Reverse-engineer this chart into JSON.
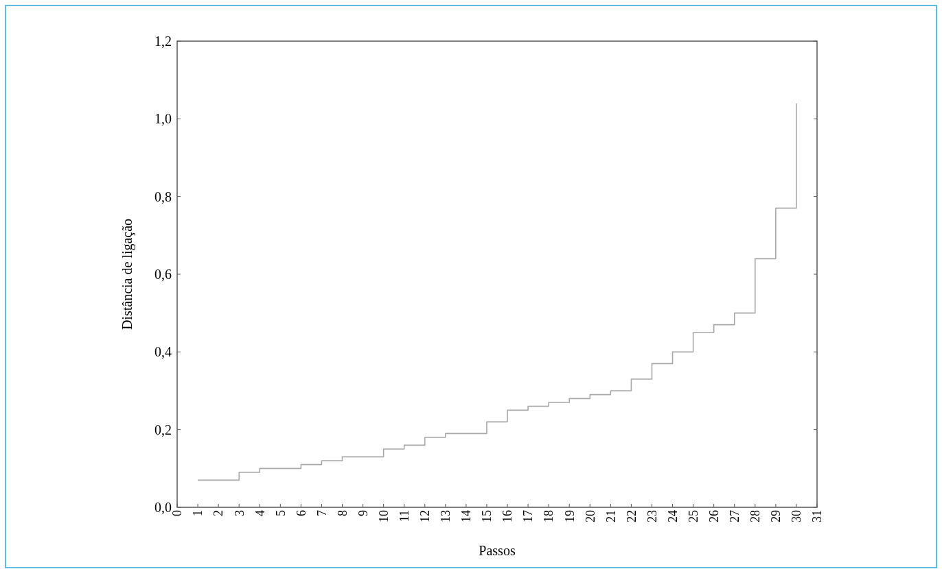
{
  "chart_data": {
    "type": "step",
    "xlabel": "Passos",
    "ylabel": "Distância de ligação",
    "x": [
      1,
      2,
      3,
      4,
      5,
      6,
      7,
      8,
      9,
      10,
      11,
      12,
      13,
      14,
      15,
      16,
      17,
      18,
      19,
      20,
      21,
      22,
      23,
      24,
      25,
      26,
      27,
      28,
      29,
      30
    ],
    "series": [
      {
        "color": "#a8a8a8",
        "values": [
          0.07,
          0.07,
          0.09,
          0.1,
          0.1,
          0.11,
          0.12,
          0.13,
          0.13,
          0.15,
          0.16,
          0.18,
          0.19,
          0.19,
          0.22,
          0.25,
          0.26,
          0.27,
          0.28,
          0.29,
          0.3,
          0.33,
          0.37,
          0.4,
          0.45,
          0.47,
          0.5,
          0.64,
          0.77,
          1.04
        ]
      }
    ],
    "xlim": [
      0,
      31
    ],
    "xticks": [
      0,
      1,
      2,
      3,
      4,
      5,
      6,
      7,
      8,
      9,
      10,
      11,
      12,
      13,
      14,
      15,
      16,
      17,
      18,
      19,
      20,
      21,
      22,
      23,
      24,
      25,
      26,
      27,
      28,
      29,
      30,
      31
    ],
    "ylim": [
      0,
      1.2
    ],
    "yticks": [
      {
        "value": 0,
        "label": "0,0"
      },
      {
        "value": 0.2,
        "label": "0,2"
      },
      {
        "value": 0.4,
        "label": "0,4"
      },
      {
        "value": 0.6,
        "label": "0,6"
      },
      {
        "value": 0.8,
        "label": "0,8"
      },
      {
        "value": 1.0,
        "label": "1,0"
      },
      {
        "value": 1.2,
        "label": "1,2"
      }
    ],
    "grid": false
  }
}
